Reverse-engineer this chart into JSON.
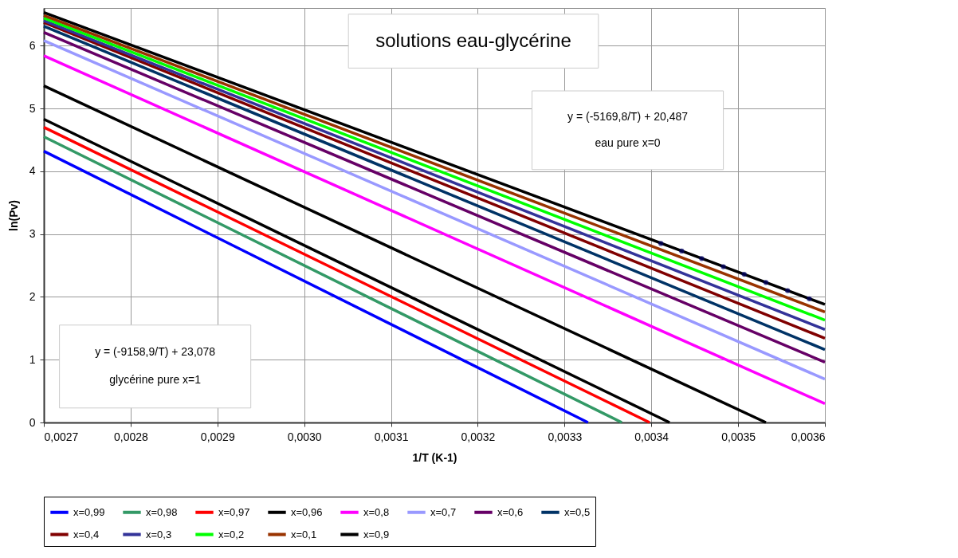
{
  "chart_data": {
    "type": "line",
    "title": "solutions eau-glycérine",
    "xlabel": "1/T  (K-1)",
    "ylabel": "ln(Pv)",
    "xlim": [
      0.0027,
      0.0036
    ],
    "ylim": [
      0,
      6.6
    ],
    "xticks": [
      {
        "value": 0.0027,
        "label": "0,0027"
      },
      {
        "value": 0.0028,
        "label": "0,0028"
      },
      {
        "value": 0.0029,
        "label": "0,0029"
      },
      {
        "value": 0.003,
        "label": "0,0030"
      },
      {
        "value": 0.0031,
        "label": "0,0031"
      },
      {
        "value": 0.0032,
        "label": "0,0032"
      },
      {
        "value": 0.0033,
        "label": "0,0033"
      },
      {
        "value": 0.0034,
        "label": "0,0034"
      },
      {
        "value": 0.0035,
        "label": "0,0035"
      },
      {
        "value": 0.0036,
        "label": "0,0036"
      }
    ],
    "yticks": [
      0,
      1,
      2,
      3,
      4,
      5,
      6
    ],
    "grid": true,
    "legend": "bottom",
    "line_style": "solid",
    "annotations": [
      "y = (-5169,8/T) + 20,487",
      "eau pure  x=0",
      "y = (-9158,9/T) + 23,078",
      "glycérine pure x=1"
    ],
    "series": [
      {
        "name": "x=0,99",
        "color": "#0000ff",
        "x": [
          0.0027,
          0.003327
        ],
        "values": [
          4.32,
          0
        ]
      },
      {
        "name": "x=0,98",
        "color": "#339966",
        "x": [
          0.0027,
          0.003366
        ],
        "values": [
          4.55,
          0
        ]
      },
      {
        "name": "x=0,97",
        "color": "#ff0000",
        "x": [
          0.0027,
          0.003398
        ],
        "values": [
          4.7,
          0
        ]
      },
      {
        "name": "x=0,96",
        "color": "#000000",
        "x": [
          0.0027,
          0.003421
        ],
        "values": [
          4.83,
          0
        ]
      },
      {
        "name": "x=0,8",
        "color": "#ff00ff",
        "x": [
          0.0027,
          0.0036
        ],
        "values": [
          5.84,
          0.3
        ]
      },
      {
        "name": "x=0,7",
        "color": "#9999ff",
        "x": [
          0.0027,
          0.0036
        ],
        "values": [
          6.08,
          0.69
        ]
      },
      {
        "name": "x=0,6",
        "color": "#660066",
        "x": [
          0.0027,
          0.0036
        ],
        "values": [
          6.21,
          0.96
        ]
      },
      {
        "name": "x=0,5",
        "color": "#003366",
        "x": [
          0.0027,
          0.0036
        ],
        "values": [
          6.31,
          1.16
        ]
      },
      {
        "name": "x=0,4",
        "color": "#800000",
        "x": [
          0.0027,
          0.0036
        ],
        "values": [
          6.37,
          1.34
        ]
      },
      {
        "name": "x=0,3",
        "color": "#333399",
        "x": [
          0.0027,
          0.0036
        ],
        "values": [
          6.4,
          1.48
        ]
      },
      {
        "name": "x=0,2",
        "color": "#00ff00",
        "x": [
          0.0027,
          0.0036
        ],
        "values": [
          6.44,
          1.63
        ]
      },
      {
        "name": "x=0,1",
        "color": "#993300",
        "x": [
          0.0027,
          0.0036
        ],
        "values": [
          6.48,
          1.76
        ]
      },
      {
        "name": "x=0,9",
        "color": "#000000",
        "x": [
          0.0027,
          0.003532
        ],
        "values": [
          5.36,
          0
        ]
      },
      {
        "color": "#000000",
        "x": [
          0.0027,
          0.0036
        ],
        "values": [
          6.53,
          1.88
        ]
      },
      {
        "type": "scatter",
        "marker": "circle",
        "color": "#000066",
        "x": [
          0.003411,
          0.003435,
          0.003458,
          0.003483,
          0.003507,
          0.003532,
          0.003557,
          0.003582
        ],
        "values": [
          2.85,
          2.73,
          2.61,
          2.48,
          2.36,
          2.23,
          2.1,
          1.97
        ]
      }
    ]
  }
}
